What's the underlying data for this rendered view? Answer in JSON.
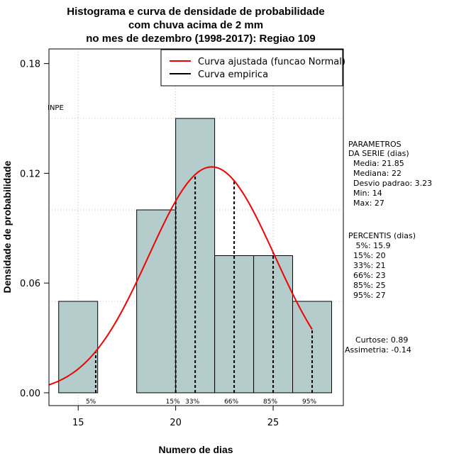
{
  "chart_data": {
    "type": "bar",
    "title_lines": [
      "Histograma e curva de densidade de probabilidade",
      "com chuva acima de 2 mm",
      "no mes de dezembro (1998-2017): Regiao 109"
    ],
    "xlabel": "Numero de dias",
    "ylabel": "Densidade de probabilidade",
    "xlim": [
      13.5,
      28.6
    ],
    "ylim": [
      -0.007,
      0.188
    ],
    "x_ticks": [
      15,
      20,
      25
    ],
    "y_ticks": [
      0.0,
      0.06,
      0.12,
      0.18
    ],
    "y_tick_labels": [
      "0.00",
      "0.06",
      "0.12",
      "0.18"
    ],
    "grid": true,
    "bars": [
      {
        "x0": 14,
        "x1": 16,
        "value": 0.05
      },
      {
        "x0": 16,
        "x1": 18,
        "value": 0.0
      },
      {
        "x0": 18,
        "x1": 20,
        "value": 0.1
      },
      {
        "x0": 20,
        "x1": 22,
        "value": 0.15
      },
      {
        "x0": 22,
        "x1": 24,
        "value": 0.075
      },
      {
        "x0": 24,
        "x1": 26,
        "value": 0.075
      },
      {
        "x0": 26,
        "x1": 28,
        "value": 0.05
      }
    ],
    "bar_color": "#b4cccc",
    "normal_curve": {
      "mean": 21.85,
      "sd": 3.23,
      "x_from": 13.5,
      "x_to": 27,
      "color": "#ee0000"
    },
    "percentile_lines": [
      {
        "x": 15.9,
        "label": "5%"
      },
      {
        "x": 20,
        "label": "15%"
      },
      {
        "x": 21,
        "label": "33%"
      },
      {
        "x": 23,
        "label": "66%"
      },
      {
        "x": 25,
        "label": "85%"
      },
      {
        "x": 27,
        "label": "95%"
      }
    ],
    "legend": {
      "position": "top-right",
      "entries": [
        {
          "label": "Curva ajustada (funcao Normal)",
          "color": "#ee0000"
        },
        {
          "label": "Curva empirica",
          "color": "#000000"
        }
      ]
    },
    "watermark": "INPE"
  },
  "side_panel": {
    "parametros": [
      "PARAMETROS",
      "DA SERIE (dias)",
      "  Media: 21.85",
      "  Mediana: 22",
      "  Desvio padrao: 3.23",
      "  Min: 14",
      "  Max: 27"
    ],
    "percentis": [
      "PERCENTIS (dias)",
      "   5%: 15.9",
      "  15%: 20",
      "  33%: 21",
      "  66%: 23",
      "  85%: 25",
      "  95%: 27"
    ],
    "moments": [
      "Curtose: 0.89",
      "Assimetria: -0.14"
    ]
  }
}
